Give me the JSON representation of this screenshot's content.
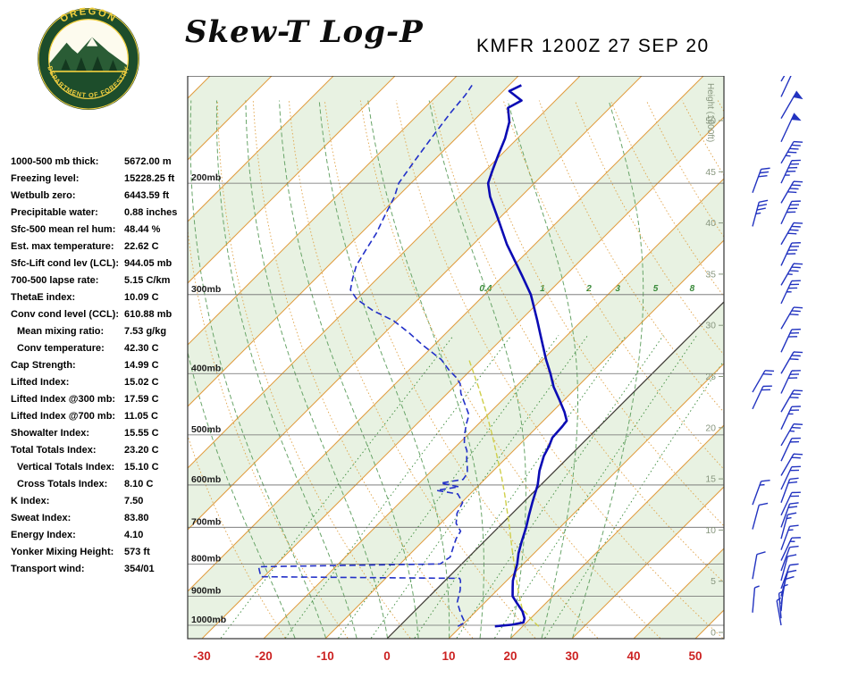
{
  "header": {
    "title": "Skew-T Log-P",
    "station": "KMFR 1200Z 27 SEP 20",
    "logo_top": "OREGON",
    "logo_bottom": "DEPARTMENT OF FORESTRY"
  },
  "stats": {
    "rows": [
      {
        "label": "1000-500 mb thick:",
        "value": "5672.00 m",
        "indent": false
      },
      {
        "label": "Freezing level:",
        "value": "15228.25 ft",
        "indent": false
      },
      {
        "label": "Wetbulb zero:",
        "value": "6443.59 ft",
        "indent": false
      },
      {
        "label": "Precipitable water:",
        "value": "0.88 inches",
        "indent": false
      },
      {
        "label": "Sfc-500 mean rel hum:",
        "value": "48.44 %",
        "indent": false
      },
      {
        "label": "Est. max temperature:",
        "value": "22.62 C",
        "indent": false
      },
      {
        "label": "Sfc-Lift cond lev (LCL):",
        "value": "944.05 mb",
        "indent": false
      },
      {
        "label": "700-500 lapse rate:",
        "value": "5.15 C/km",
        "indent": false
      },
      {
        "label": "ThetaE index:",
        "value": "10.09 C",
        "indent": false
      },
      {
        "label": "Conv cond level (CCL):",
        "value": "610.88 mb",
        "indent": false
      },
      {
        "label": "Mean mixing ratio:",
        "value": "7.53 g/kg",
        "indent": true
      },
      {
        "label": "Conv temperature:",
        "value": "42.30 C",
        "indent": true
      },
      {
        "label": "Cap Strength:",
        "value": "14.99 C",
        "indent": false
      },
      {
        "label": "Lifted Index:",
        "value": "15.02 C",
        "indent": false
      },
      {
        "label": "Lifted Index @300 mb:",
        "value": "17.59 C",
        "indent": false
      },
      {
        "label": "Lifted Index @700 mb:",
        "value": "11.05 C",
        "indent": false
      },
      {
        "label": "Showalter Index:",
        "value": "15.55 C",
        "indent": false
      },
      {
        "label": "Total Totals Index:",
        "value": "23.20 C",
        "indent": false
      },
      {
        "label": "Vertical Totals Index:",
        "value": "15.10 C",
        "indent": true
      },
      {
        "label": "Cross Totals Index:",
        "value": "8.10 C",
        "indent": true
      },
      {
        "label": "K Index:",
        "value": "7.50",
        "indent": false
      },
      {
        "label": "Sweat Index:",
        "value": "83.80",
        "indent": false
      },
      {
        "label": "Energy Index:",
        "value": "4.10",
        "indent": false
      },
      {
        "label": "Yonker Mixing Height:",
        "value": "573 ft",
        "indent": false
      },
      {
        "label": "Transport wind:",
        "value": "354/01",
        "indent": false
      }
    ]
  },
  "chart_data": {
    "type": "skewt-log-p",
    "title": "Skew-T Log-P",
    "station": "KMFR 1200Z 27 SEP 20",
    "pressure_axis": {
      "levels": [
        200,
        300,
        400,
        500,
        600,
        700,
        800,
        900,
        1000
      ],
      "labels": [
        "200mb",
        "300mb",
        "400mb",
        "500mb",
        "600mb",
        "700mb",
        "800mb",
        "900mb",
        "1000mb"
      ],
      "range_mb": [
        135,
        1050
      ]
    },
    "temp_axis": {
      "ticks": [
        -30,
        -20,
        -10,
        0,
        10,
        20,
        30,
        40,
        50
      ],
      "unit": "C"
    },
    "height_axis": {
      "title": "Height (1000ft)",
      "ticks": [
        0,
        5,
        10,
        15,
        20,
        25,
        30,
        35,
        40,
        45,
        50
      ]
    },
    "mixing_ratio_lines": [
      0.4,
      1,
      2,
      3,
      5,
      8,
      12,
      20
    ],
    "mixing_ratio_labeled": [
      0.4,
      1,
      2,
      3,
      5,
      8
    ],
    "dry_adiabats_c": [
      -20,
      -10,
      0,
      10,
      20,
      30,
      40,
      50,
      60,
      70,
      80,
      90,
      100,
      110,
      120,
      130,
      140,
      150
    ],
    "moist_adiabats_c": [
      -15,
      -10,
      -5,
      0,
      5,
      10,
      15,
      20,
      25,
      30
    ],
    "isotherms_c": {
      "min": -120,
      "max": 50,
      "step": 10
    },
    "temperature_profile": [
      [
        1004,
        15.5
      ],
      [
        998,
        18.0
      ],
      [
        990,
        19.5
      ],
      [
        975,
        19.0
      ],
      [
        950,
        17.5
      ],
      [
        925,
        15.5
      ],
      [
        900,
        13.5
      ],
      [
        870,
        12.0
      ],
      [
        850,
        11.0
      ],
      [
        820,
        9.8
      ],
      [
        800,
        9.0
      ],
      [
        770,
        7.5
      ],
      [
        740,
        6.2
      ],
      [
        700,
        4.5
      ],
      [
        670,
        3.0
      ],
      [
        640,
        1.5
      ],
      [
        600,
        -0.5
      ],
      [
        570,
        -2.5
      ],
      [
        540,
        -4.2
      ],
      [
        520,
        -5.0
      ],
      [
        505,
        -5.8
      ],
      [
        495,
        -5.9
      ],
      [
        485,
        -6.0
      ],
      [
        475,
        -6.2
      ],
      [
        460,
        -8.0
      ],
      [
        440,
        -10.8
      ],
      [
        420,
        -13.8
      ],
      [
        400,
        -16.5
      ],
      [
        380,
        -19.5
      ],
      [
        350,
        -24.0
      ],
      [
        330,
        -27.2
      ],
      [
        300,
        -32.5
      ],
      [
        280,
        -37.0
      ],
      [
        250,
        -44.5
      ],
      [
        230,
        -49.5
      ],
      [
        210,
        -55.0
      ],
      [
        200,
        -57.5
      ],
      [
        190,
        -59.0
      ],
      [
        180,
        -60.5
      ],
      [
        170,
        -62.0
      ],
      [
        160,
        -64.0
      ],
      [
        152,
        -66.5
      ],
      [
        148,
        -65.5
      ],
      [
        143,
        -69.0
      ],
      [
        140,
        -68.0
      ]
    ],
    "dewpoint_profile": [
      [
        1004,
        9.5
      ],
      [
        990,
        10.0
      ],
      [
        960,
        8.0
      ],
      [
        920,
        5.5
      ],
      [
        880,
        4.0
      ],
      [
        850,
        2.5
      ],
      [
        843,
        2.0
      ],
      [
        838,
        -30.5
      ],
      [
        808,
        -32.5
      ],
      [
        800,
        -3.5
      ],
      [
        780,
        -3.0
      ],
      [
        755,
        -4.0
      ],
      [
        730,
        -5.0
      ],
      [
        710,
        -5.5
      ],
      [
        690,
        -7.5
      ],
      [
        665,
        -9.0
      ],
      [
        640,
        -9.8
      ],
      [
        620,
        -12.0
      ],
      [
        612,
        -16.0
      ],
      [
        604,
        -13.0
      ],
      [
        596,
        -16.5
      ],
      [
        588,
        -13.5
      ],
      [
        575,
        -13.8
      ],
      [
        560,
        -15.0
      ],
      [
        545,
        -16.3
      ],
      [
        530,
        -17.5
      ],
      [
        515,
        -19.2
      ],
      [
        500,
        -20.5
      ],
      [
        480,
        -22.0
      ],
      [
        465,
        -23.0
      ],
      [
        450,
        -25.0
      ],
      [
        430,
        -27.8
      ],
      [
        415,
        -29.5
      ],
      [
        405,
        -31.3
      ],
      [
        395,
        -33.5
      ],
      [
        380,
        -36.5
      ],
      [
        360,
        -42.0
      ],
      [
        345,
        -46.0
      ],
      [
        330,
        -50.5
      ],
      [
        318,
        -55.5
      ],
      [
        305,
        -60.0
      ],
      [
        295,
        -62.5
      ],
      [
        283,
        -64.0
      ],
      [
        270,
        -65.5
      ],
      [
        255,
        -66.5
      ],
      [
        240,
        -67.5
      ],
      [
        225,
        -69.0
      ],
      [
        210,
        -70.5
      ],
      [
        200,
        -72.0
      ],
      [
        185,
        -73.0
      ],
      [
        170,
        -74.0
      ],
      [
        155,
        -75.0
      ],
      [
        145,
        -75.5
      ],
      [
        140,
        -76.0
      ]
    ],
    "parcel_profile": [
      [
        1004,
        22.6
      ],
      [
        980,
        20.4
      ],
      [
        960,
        18.7
      ],
      [
        944,
        17.2
      ],
      [
        920,
        15.8
      ],
      [
        900,
        14.6
      ],
      [
        870,
        12.8
      ],
      [
        840,
        11.0
      ],
      [
        800,
        8.5
      ],
      [
        760,
        5.9
      ],
      [
        720,
        3.2
      ],
      [
        700,
        1.8
      ],
      [
        660,
        -1.2
      ],
      [
        620,
        -4.4
      ],
      [
        580,
        -7.9
      ],
      [
        540,
        -11.8
      ],
      [
        500,
        -16.0
      ],
      [
        460,
        -20.7
      ],
      [
        420,
        -26.0
      ],
      [
        380,
        -32.0
      ]
    ],
    "winds": [
      {
        "p": 1000,
        "dir": 350,
        "spd": 3
      },
      {
        "p": 975,
        "dir": 355,
        "spd": 5
      },
      {
        "p": 950,
        "dir": 5,
        "spd": 5
      },
      {
        "p": 925,
        "dir": 10,
        "spd": 8
      },
      {
        "p": 900,
        "dir": 15,
        "spd": 10
      },
      {
        "p": 875,
        "dir": 20,
        "spd": 10
      },
      {
        "p": 850,
        "dir": 15,
        "spd": 12
      },
      {
        "p": 820,
        "dir": 20,
        "spd": 12
      },
      {
        "p": 790,
        "dir": 25,
        "spd": 15
      },
      {
        "p": 760,
        "dir": 20,
        "spd": 15
      },
      {
        "p": 730,
        "dir": 15,
        "spd": 15
      },
      {
        "p": 700,
        "dir": 20,
        "spd": 18
      },
      {
        "p": 670,
        "dir": 25,
        "spd": 18
      },
      {
        "p": 640,
        "dir": 20,
        "spd": 20
      },
      {
        "p": 610,
        "dir": 25,
        "spd": 20
      },
      {
        "p": 580,
        "dir": 30,
        "spd": 22
      },
      {
        "p": 550,
        "dir": 25,
        "spd": 22
      },
      {
        "p": 520,
        "dir": 30,
        "spd": 25
      },
      {
        "p": 490,
        "dir": 25,
        "spd": 25
      },
      {
        "p": 460,
        "dir": 30,
        "spd": 28
      },
      {
        "p": 430,
        "dir": 25,
        "spd": 28
      },
      {
        "p": 400,
        "dir": 30,
        "spd": 30
      },
      {
        "p": 370,
        "dir": 25,
        "spd": 32
      },
      {
        "p": 340,
        "dir": 30,
        "spd": 32
      },
      {
        "p": 310,
        "dir": 25,
        "spd": 35
      },
      {
        "p": 290,
        "dir": 30,
        "spd": 35
      },
      {
        "p": 270,
        "dir": 25,
        "spd": 38
      },
      {
        "p": 250,
        "dir": 30,
        "spd": 40
      },
      {
        "p": 232,
        "dir": 25,
        "spd": 40
      },
      {
        "p": 215,
        "dir": 30,
        "spd": 42
      },
      {
        "p": 200,
        "dir": 25,
        "spd": 45
      },
      {
        "p": 186,
        "dir": 30,
        "spd": 45
      },
      {
        "p": 172,
        "dir": 25,
        "spd": 48
      },
      {
        "p": 158,
        "dir": 30,
        "spd": 48
      },
      {
        "p": 146,
        "dir": 25,
        "spd": 50
      },
      {
        "p": 138,
        "dir": 30,
        "spd": 52
      }
    ],
    "winds_left": [
      {
        "p": 955,
        "dir": 5,
        "spd": 5
      },
      {
        "p": 845,
        "dir": 10,
        "spd": 8
      },
      {
        "p": 705,
        "dir": 15,
        "spd": 12
      },
      {
        "p": 645,
        "dir": 20,
        "spd": 15
      },
      {
        "p": 455,
        "dir": 25,
        "spd": 20
      },
      {
        "p": 428,
        "dir": 30,
        "spd": 22
      },
      {
        "p": 234,
        "dir": 15,
        "spd": 35
      },
      {
        "p": 207,
        "dir": 20,
        "spd": 30
      }
    ],
    "colors": {
      "temperature": "#0b0bb4",
      "dewpoint": "#2230c8",
      "parcel": "#cfcf4a",
      "isotherm": "#e09b3d",
      "dry_adiabat": "#e0a348",
      "moist_adiabat": "#69a569",
      "mixing_ratio": "#3a8a3a",
      "band": "#e8f2e2",
      "pressure_line": "#6b6b6b",
      "temp_label": "#cc2222",
      "height_label": "#88977f",
      "wind": "#2233c0",
      "zero_isotherm": "#3c3c3c",
      "frame": "#333333"
    }
  }
}
